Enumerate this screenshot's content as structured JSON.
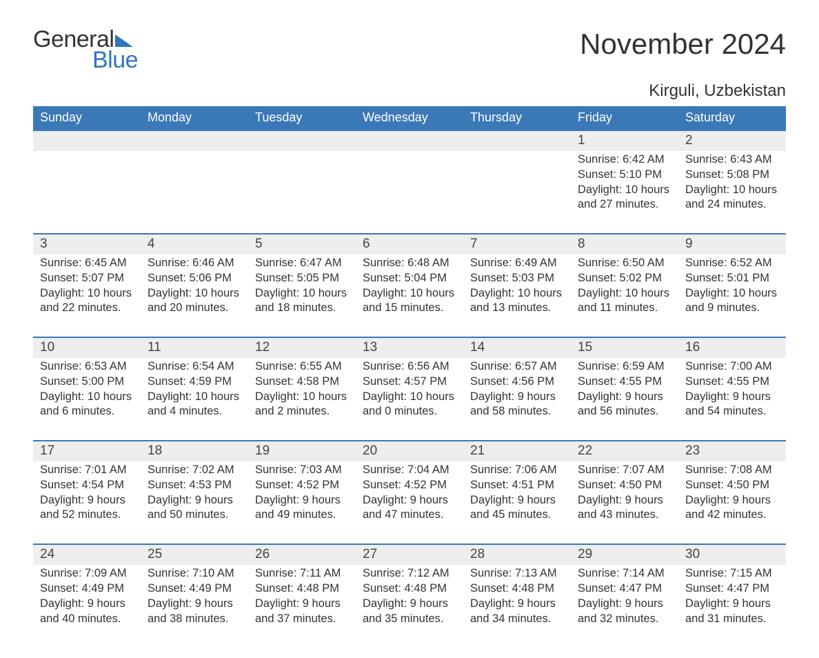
{
  "brand": {
    "line1": "General",
    "line2": "Blue",
    "logo_color": "#2f76bb"
  },
  "title": "November 2024",
  "subtitle": "Kirguli, Uzbekistan",
  "colors": {
    "header_bg": "#3b78b8",
    "header_text": "#ffffff",
    "daynum_bg": "#eeeeee",
    "rule": "#3b78b8",
    "body_text": "#333333",
    "background": "#ffffff"
  },
  "day_headers": [
    "Sunday",
    "Monday",
    "Tuesday",
    "Wednesday",
    "Thursday",
    "Friday",
    "Saturday"
  ],
  "weeks": [
    {
      "nums": [
        "",
        "",
        "",
        "",
        "",
        "1",
        "2"
      ],
      "data": [
        "",
        "",
        "",
        "",
        "",
        "Sunrise: 6:42 AM\nSunset: 5:10 PM\nDaylight: 10 hours and 27 minutes.",
        "Sunrise: 6:43 AM\nSunset: 5:08 PM\nDaylight: 10 hours and 24 minutes."
      ]
    },
    {
      "nums": [
        "3",
        "4",
        "5",
        "6",
        "7",
        "8",
        "9"
      ],
      "data": [
        "Sunrise: 6:45 AM\nSunset: 5:07 PM\nDaylight: 10 hours and 22 minutes.",
        "Sunrise: 6:46 AM\nSunset: 5:06 PM\nDaylight: 10 hours and 20 minutes.",
        "Sunrise: 6:47 AM\nSunset: 5:05 PM\nDaylight: 10 hours and 18 minutes.",
        "Sunrise: 6:48 AM\nSunset: 5:04 PM\nDaylight: 10 hours and 15 minutes.",
        "Sunrise: 6:49 AM\nSunset: 5:03 PM\nDaylight: 10 hours and 13 minutes.",
        "Sunrise: 6:50 AM\nSunset: 5:02 PM\nDaylight: 10 hours and 11 minutes.",
        "Sunrise: 6:52 AM\nSunset: 5:01 PM\nDaylight: 10 hours and 9 minutes."
      ]
    },
    {
      "nums": [
        "10",
        "11",
        "12",
        "13",
        "14",
        "15",
        "16"
      ],
      "data": [
        "Sunrise: 6:53 AM\nSunset: 5:00 PM\nDaylight: 10 hours and 6 minutes.",
        "Sunrise: 6:54 AM\nSunset: 4:59 PM\nDaylight: 10 hours and 4 minutes.",
        "Sunrise: 6:55 AM\nSunset: 4:58 PM\nDaylight: 10 hours and 2 minutes.",
        "Sunrise: 6:56 AM\nSunset: 4:57 PM\nDaylight: 10 hours and 0 minutes.",
        "Sunrise: 6:57 AM\nSunset: 4:56 PM\nDaylight: 9 hours and 58 minutes.",
        "Sunrise: 6:59 AM\nSunset: 4:55 PM\nDaylight: 9 hours and 56 minutes.",
        "Sunrise: 7:00 AM\nSunset: 4:55 PM\nDaylight: 9 hours and 54 minutes."
      ]
    },
    {
      "nums": [
        "17",
        "18",
        "19",
        "20",
        "21",
        "22",
        "23"
      ],
      "data": [
        "Sunrise: 7:01 AM\nSunset: 4:54 PM\nDaylight: 9 hours and 52 minutes.",
        "Sunrise: 7:02 AM\nSunset: 4:53 PM\nDaylight: 9 hours and 50 minutes.",
        "Sunrise: 7:03 AM\nSunset: 4:52 PM\nDaylight: 9 hours and 49 minutes.",
        "Sunrise: 7:04 AM\nSunset: 4:52 PM\nDaylight: 9 hours and 47 minutes.",
        "Sunrise: 7:06 AM\nSunset: 4:51 PM\nDaylight: 9 hours and 45 minutes.",
        "Sunrise: 7:07 AM\nSunset: 4:50 PM\nDaylight: 9 hours and 43 minutes.",
        "Sunrise: 7:08 AM\nSunset: 4:50 PM\nDaylight: 9 hours and 42 minutes."
      ]
    },
    {
      "nums": [
        "24",
        "25",
        "26",
        "27",
        "28",
        "29",
        "30"
      ],
      "data": [
        "Sunrise: 7:09 AM\nSunset: 4:49 PM\nDaylight: 9 hours and 40 minutes.",
        "Sunrise: 7:10 AM\nSunset: 4:49 PM\nDaylight: 9 hours and 38 minutes.",
        "Sunrise: 7:11 AM\nSunset: 4:48 PM\nDaylight: 9 hours and 37 minutes.",
        "Sunrise: 7:12 AM\nSunset: 4:48 PM\nDaylight: 9 hours and 35 minutes.",
        "Sunrise: 7:13 AM\nSunset: 4:48 PM\nDaylight: 9 hours and 34 minutes.",
        "Sunrise: 7:14 AM\nSunset: 4:47 PM\nDaylight: 9 hours and 32 minutes.",
        "Sunrise: 7:15 AM\nSunset: 4:47 PM\nDaylight: 9 hours and 31 minutes."
      ]
    }
  ]
}
